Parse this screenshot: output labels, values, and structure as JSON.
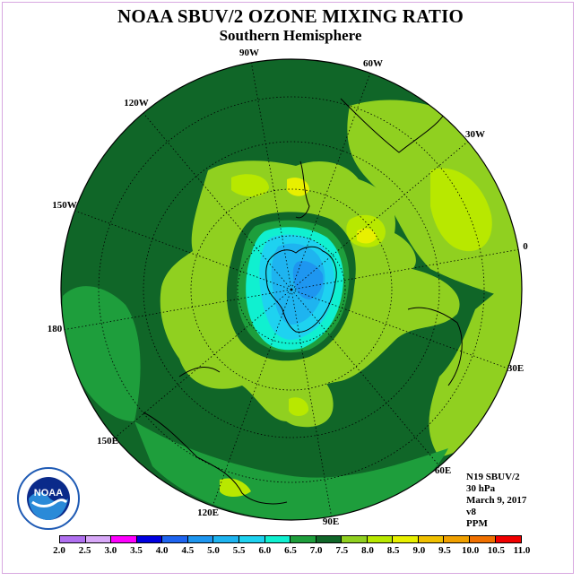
{
  "title": "NOAA SBUV/2 OZONE MIXING RATIO",
  "subtitle": "Southern Hemisphere",
  "longitude_labels": [
    "90W",
    "60W",
    "30W",
    "0",
    "30E",
    "60E",
    "90E",
    "120E",
    "150E",
    "180",
    "150W",
    "120W"
  ],
  "info": {
    "satellite": "N19 SBUV/2",
    "level": "30 hPa",
    "date": "March 9, 2017",
    "version": "v8",
    "units": "PPM"
  },
  "logo": {
    "text": "NOAA",
    "ring_text": "NATIONAL OCEANIC AND ATMOSPHERIC ADMINISTRATION",
    "ring_text_bottom": "U.S. DEPARTMENT OF COMMERCE"
  },
  "colorbar": {
    "labels": [
      "2.0",
      "2.5",
      "3.0",
      "3.5",
      "4.0",
      "4.5",
      "5.0",
      "5.5",
      "6.0",
      "6.5",
      "7.0",
      "7.5",
      "8.0",
      "8.5",
      "9.0",
      "9.5",
      "10.0",
      "10.5",
      "11.0"
    ],
    "colors": [
      "#b070f0",
      "#d8a8f8",
      "#ff00ff",
      "#0000e0",
      "#1e64f0",
      "#1e96f0",
      "#1eb4f0",
      "#1ed2f0",
      "#10f0d0",
      "#1e9e3c",
      "#106628",
      "#90d020",
      "#b8e800",
      "#e8f000",
      "#f0c000",
      "#f0a000",
      "#f07000",
      "#f00000",
      "#a06040"
    ]
  },
  "map_colors": {
    "background": "#106628",
    "mid_green": "#1e9e3c",
    "lime": "#90d020",
    "yellow_green": "#b8e800",
    "yellow": "#e8f000",
    "cyan": "#10f0d0",
    "light_blue": "#1ed2f0",
    "blue": "#1eb4f0",
    "deep_blue": "#1e96f0"
  }
}
